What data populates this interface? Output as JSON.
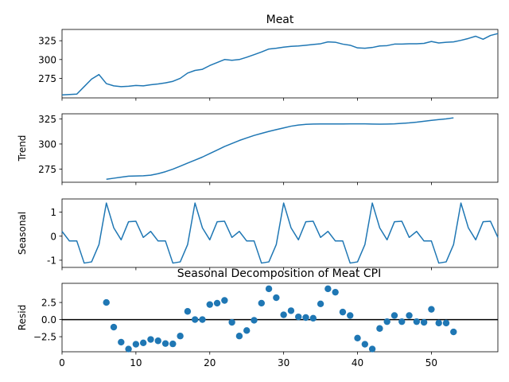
{
  "figure": {
    "title": "Meat",
    "overlay_title": "Seasonal Decomposition of Meat CPI"
  },
  "chart_data": [
    {
      "type": "line",
      "panel": "observed",
      "ylabel": "",
      "xlim": [
        0,
        59
      ],
      "ylim": [
        249,
        340
      ],
      "yticks": [
        275,
        300,
        325
      ],
      "x": [
        0,
        1,
        2,
        3,
        4,
        5,
        6,
        7,
        8,
        9,
        10,
        11,
        12,
        13,
        14,
        15,
        16,
        17,
        18,
        19,
        20,
        21,
        22,
        23,
        24,
        25,
        26,
        27,
        28,
        29,
        30,
        31,
        32,
        33,
        34,
        35,
        36,
        37,
        38,
        39,
        40,
        41,
        42,
        43,
        44,
        45,
        46,
        47,
        48,
        49,
        50,
        51,
        52,
        53,
        54,
        55,
        56,
        57,
        58,
        59
      ],
      "values": [
        253,
        253.5,
        254,
        264,
        274,
        280,
        268,
        265,
        264,
        264.5,
        265.5,
        265,
        266.5,
        267.5,
        269,
        271,
        275,
        282,
        285.5,
        287,
        292,
        296,
        300,
        299,
        300,
        303,
        306.5,
        310,
        314,
        315,
        316.5,
        317.5,
        318,
        319,
        320,
        321,
        323.5,
        323,
        320.5,
        319,
        315.5,
        315,
        316,
        318,
        318.5,
        320.5,
        320.5,
        321,
        321,
        321.5,
        324,
        322,
        323,
        323.5,
        325.5,
        328,
        331,
        327,
        332,
        334.5
      ],
      "color": "#1f77b4",
      "grid": false
    },
    {
      "type": "line",
      "panel": "trend",
      "ylabel": "Trend",
      "xlim": [
        0,
        59
      ],
      "ylim": [
        262,
        330
      ],
      "yticks": [
        275,
        300,
        325
      ],
      "x": [
        6,
        7,
        8,
        9,
        10,
        11,
        12,
        13,
        14,
        15,
        16,
        17,
        18,
        19,
        20,
        21,
        22,
        23,
        24,
        25,
        26,
        27,
        28,
        29,
        30,
        31,
        32,
        33,
        34,
        35,
        36,
        37,
        38,
        39,
        40,
        41,
        42,
        43,
        44,
        45,
        46,
        47,
        48,
        49,
        50,
        51,
        52,
        53
      ],
      "values": [
        265,
        266,
        267,
        268,
        268.2,
        268.4,
        269,
        270.5,
        272.5,
        275,
        278,
        281,
        284,
        287,
        290.5,
        294,
        297.5,
        300.5,
        303.5,
        306,
        308.5,
        310.5,
        312.5,
        314.3,
        316,
        317.7,
        318.8,
        319.5,
        319.8,
        319.9,
        319.9,
        319.9,
        319.9,
        320,
        320,
        320,
        319.8,
        319.7,
        319.8,
        320,
        320.5,
        321,
        321.7,
        322.6,
        323.5,
        324.3,
        325,
        326
      ]
    },
    {
      "type": "line",
      "panel": "seasonal",
      "ylabel": "Seasonal",
      "xlim": [
        0,
        59
      ],
      "ylim": [
        -1.3,
        1.55
      ],
      "yticks": [
        -1,
        0,
        1
      ],
      "period": 12,
      "x": [
        0,
        1,
        2,
        3,
        4,
        5,
        6,
        7,
        8,
        9,
        10,
        11,
        12,
        13,
        14,
        15,
        16,
        17,
        18,
        19,
        20,
        21,
        22,
        23,
        24,
        25,
        26,
        27,
        28,
        29,
        30,
        31,
        32,
        33,
        34,
        35,
        36,
        37,
        38,
        39,
        40,
        41,
        42,
        43,
        44,
        45,
        46,
        47,
        48,
        49,
        50,
        51,
        52,
        53,
        54,
        55,
        56,
        57,
        58,
        59
      ],
      "values": [
        0.2,
        -0.2,
        -0.2,
        -1.12,
        -1.07,
        -0.35,
        1.38,
        0.35,
        -0.15,
        0.6,
        0.62,
        -0.05,
        0.2,
        -0.2,
        -0.2,
        -1.12,
        -1.07,
        -0.35,
        1.38,
        0.35,
        -0.15,
        0.6,
        0.62,
        -0.05,
        0.2,
        -0.2,
        -0.2,
        -1.12,
        -1.07,
        -0.35,
        1.38,
        0.35,
        -0.15,
        0.6,
        0.62,
        -0.05,
        0.2,
        -0.2,
        -0.2,
        -1.12,
        -1.07,
        -0.35,
        1.38,
        0.35,
        -0.15,
        0.6,
        0.62,
        -0.05,
        0.2,
        -0.2,
        -0.2,
        -1.12,
        -1.07,
        -0.35,
        1.38,
        0.35,
        -0.15,
        0.6,
        0.62,
        -0.05
      ]
    },
    {
      "type": "scatter",
      "panel": "resid",
      "ylabel": "Resid",
      "xlabel": "",
      "xlim": [
        0,
        59
      ],
      "ylim": [
        -4.7,
        5.3
      ],
      "yticks": [
        -2.5,
        0.0,
        2.5
      ],
      "yticklabels": [
        "−2.5",
        "0.0",
        "2.5"
      ],
      "xticks": [
        0,
        10,
        20,
        30,
        40,
        50
      ],
      "zero_line": true,
      "x": [
        6,
        7,
        8,
        9,
        10,
        11,
        12,
        13,
        14,
        15,
        16,
        17,
        18,
        19,
        20,
        21,
        22,
        23,
        24,
        25,
        26,
        27,
        28,
        29,
        30,
        31,
        32,
        33,
        34,
        35,
        36,
        37,
        38,
        39,
        40,
        41,
        42,
        43,
        44,
        45,
        46,
        47,
        48,
        49,
        50,
        51,
        52,
        53
      ],
      "values": [
        2.5,
        -1.1,
        -3.3,
        -4.3,
        -3.6,
        -3.4,
        -2.9,
        -3.1,
        -3.5,
        -3.55,
        -2.4,
        1.2,
        0.0,
        0.0,
        2.2,
        2.4,
        2.8,
        -0.4,
        -2.4,
        -1.6,
        -0.1,
        2.4,
        4.5,
        3.2,
        0.7,
        1.3,
        0.4,
        0.3,
        0.2,
        2.3,
        4.5,
        4.0,
        1.1,
        0.6,
        -2.7,
        -3.6,
        -4.3,
        -1.3,
        -0.3,
        0.6,
        -0.3,
        0.6,
        -0.3,
        -0.4,
        1.5,
        -0.5,
        -0.5,
        -1.8
      ]
    }
  ]
}
